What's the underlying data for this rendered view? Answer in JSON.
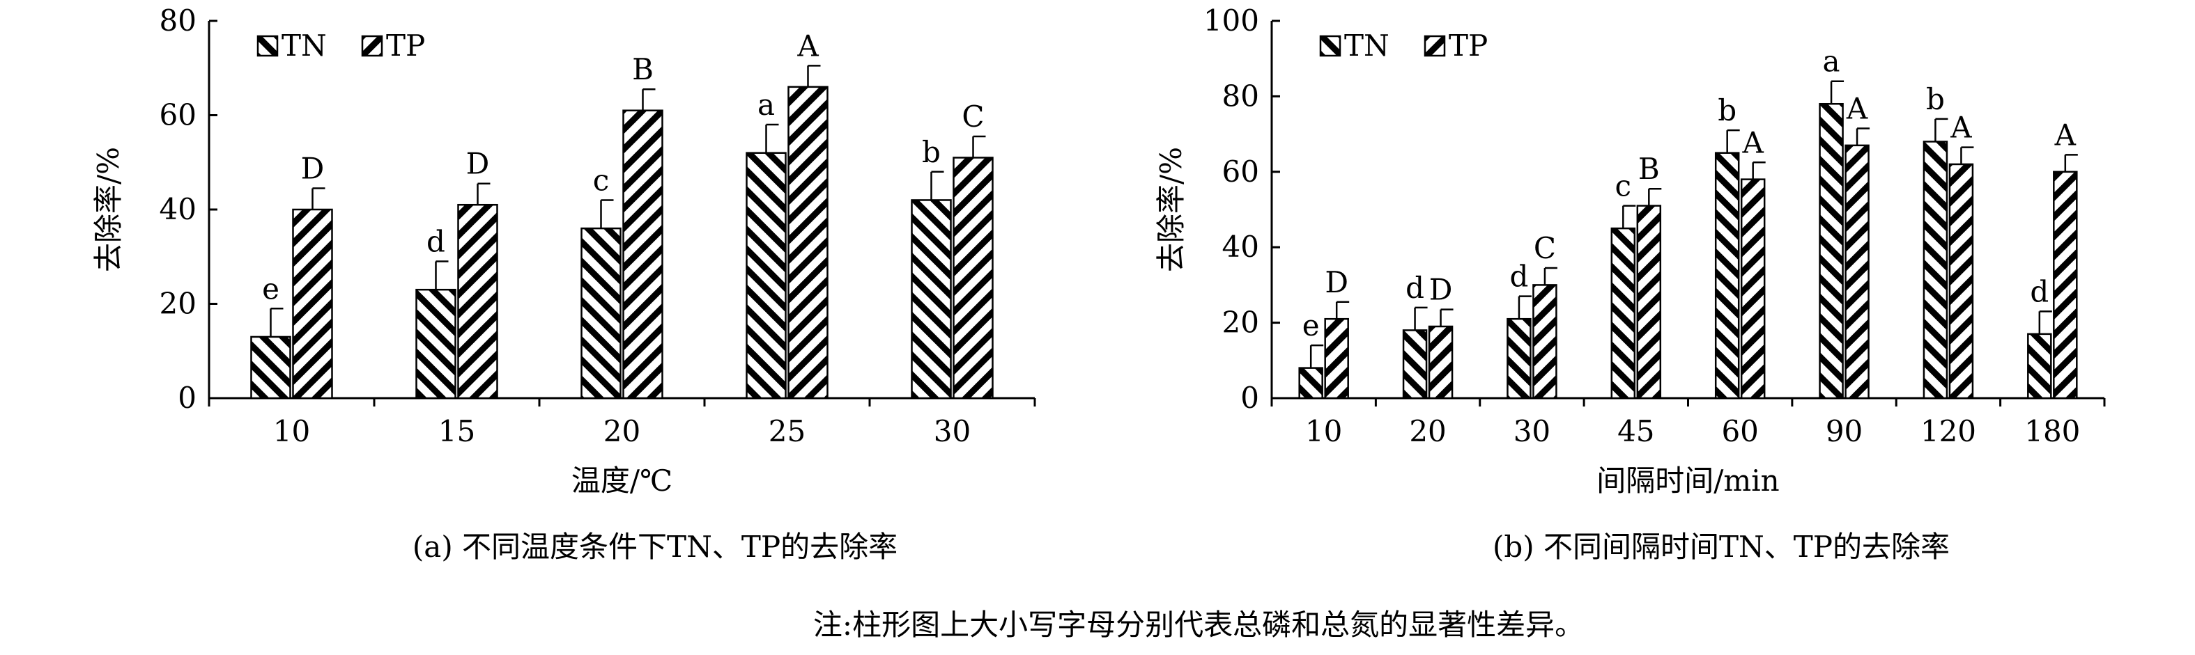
{
  "note": "注:柱形图上大小写字母分别代表总磷和总氮的显著性差异。",
  "chart_data": [
    {
      "type": "bar",
      "caption": "(a) 不同温度条件下TN、TP的去除率",
      "xlabel": "温度/℃",
      "ylabel": "去除率/%",
      "ylim": [
        0,
        80
      ],
      "yticks": [
        "0",
        "20",
        "40",
        "60",
        "80"
      ],
      "categories": [
        "10",
        "15",
        "20",
        "25",
        "30"
      ],
      "legend_position": "top-left",
      "grid": false,
      "series": [
        {
          "name": "TN",
          "values": [
            13,
            23,
            36,
            52,
            42
          ],
          "errors": [
            6,
            6,
            6,
            6,
            6
          ],
          "labels": [
            "e",
            "d",
            "c",
            "a",
            "b"
          ]
        },
        {
          "name": "TP",
          "values": [
            40,
            41,
            61,
            66,
            51
          ],
          "errors": [
            4.5,
            4.5,
            4.5,
            4.5,
            4.5
          ],
          "labels": [
            "D",
            "D",
            "B",
            "A",
            "C"
          ]
        }
      ]
    },
    {
      "type": "bar",
      "caption": "(b) 不同间隔时间TN、TP的去除率",
      "xlabel": "间隔时间/min",
      "ylabel": "去除率/%",
      "ylim": [
        0,
        100
      ],
      "yticks": [
        "0",
        "20",
        "40",
        "60",
        "80",
        "100"
      ],
      "categories": [
        "10",
        "20",
        "30",
        "45",
        "60",
        "90",
        "120",
        "180"
      ],
      "legend_position": "top-left",
      "grid": false,
      "series": [
        {
          "name": "TN",
          "values": [
            8,
            18,
            21,
            45,
            65,
            78,
            68,
            17
          ],
          "errors": [
            6,
            6,
            6,
            6,
            6,
            6,
            6,
            6
          ],
          "labels": [
            "e",
            "d",
            "d",
            "c",
            "b",
            "a",
            "b",
            "d"
          ]
        },
        {
          "name": "TP",
          "values": [
            21,
            19,
            30,
            51,
            58,
            67,
            62,
            60
          ],
          "errors": [
            4.5,
            4.5,
            4.5,
            4.5,
            4.5,
            4.5,
            4.5,
            4.5
          ],
          "labels": [
            "D",
            "D",
            "C",
            "B",
            "A",
            "A",
            "A",
            "A"
          ]
        }
      ]
    }
  ]
}
